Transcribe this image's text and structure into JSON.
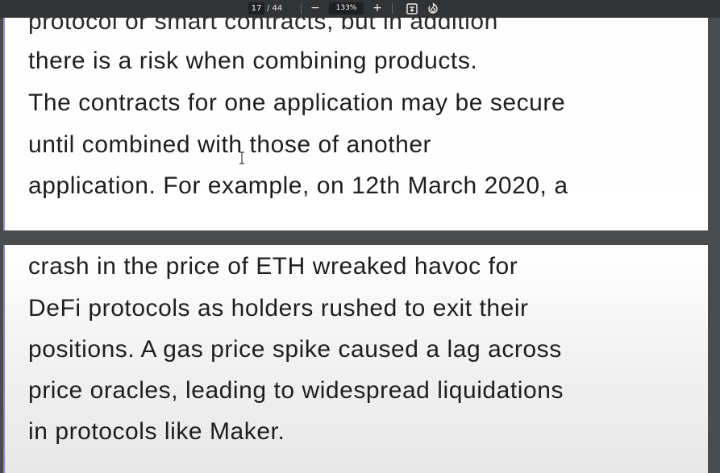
{
  "toolbar": {
    "current_page": "17",
    "page_total": "/ 44",
    "zoom_out_label": "−",
    "zoom_value": "133%",
    "zoom_in_label": "+",
    "fit_icon": "fit-page-icon",
    "rotate_icon": "rotate-icon"
  },
  "page_top": {
    "cut_line": "protocol or smart contracts, but in addition",
    "lines": [
      "there is a risk when combining products.",
      "The contracts for one application may be secure",
      "until combined with those of another",
      "application. For example, on 12th March 2020, a"
    ]
  },
  "page_bottom": {
    "lines": [
      "crash in the price of ETH wreaked havoc for",
      "DeFi protocols as holders rushed to exit their",
      "positions. A gas price spike caused a lag across",
      "price oracles, leading to widespread liquidations",
      "in protocols like Maker."
    ]
  },
  "colors": {
    "toolbar_bg": "#323335",
    "viewer_bg": "#4a4b4d",
    "page_bg": "#ffffff",
    "text": "#1e1e1e",
    "margin_rule": "#8d95c9"
  }
}
